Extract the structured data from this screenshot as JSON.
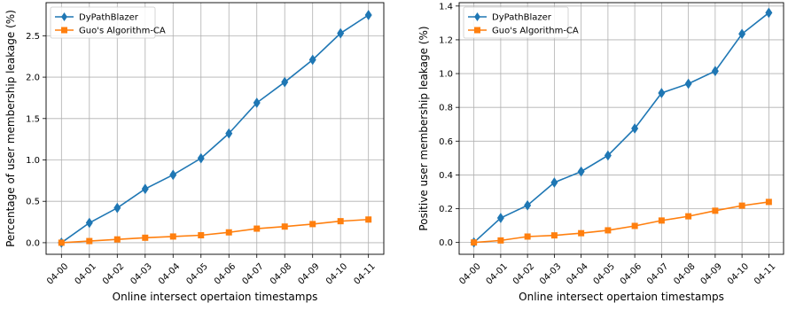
{
  "chart_data": [
    {
      "type": "line",
      "categories": [
        "04-00",
        "04-01",
        "04-02",
        "04-03",
        "04-04",
        "04-05",
        "04-06",
        "04-07",
        "04-08",
        "04-09",
        "04-10",
        "04-11"
      ],
      "xlabel": "Online intersect opertaion timestamps",
      "ylabel": "Percentage of user membership leakage (%)",
      "ylim": [
        -0.14,
        2.9
      ],
      "yticks": [
        0.0,
        0.5,
        1.0,
        1.5,
        2.0,
        2.5
      ],
      "ytick_labels": [
        "0.0",
        "0.5",
        "1.0",
        "1.5",
        "2.0",
        "2.5"
      ],
      "grid": true,
      "legend": "top-left",
      "series": [
        {
          "name": "DyPathBlazer",
          "color": "#1f77b4",
          "marker": "diamond",
          "values": [
            0.0,
            0.24,
            0.42,
            0.65,
            0.82,
            1.02,
            1.32,
            1.69,
            1.94,
            2.21,
            2.53,
            2.75
          ]
        },
        {
          "name": "Guo's Algorithm-CA",
          "color": "#ff7f0e",
          "marker": "square",
          "values": [
            0.0,
            0.02,
            0.04,
            0.06,
            0.075,
            0.09,
            0.125,
            0.17,
            0.195,
            0.225,
            0.26,
            0.28
          ]
        }
      ]
    },
    {
      "type": "line",
      "categories": [
        "04-00",
        "04-01",
        "04-02",
        "04-03",
        "04-04",
        "04-05",
        "04-06",
        "04-07",
        "04-08",
        "04-09",
        "04-10",
        "04-11"
      ],
      "xlabel": "Online intersect opertaion timestamps",
      "ylabel": "Positive user membership leakage (%)",
      "ylim": [
        -0.07,
        1.42
      ],
      "yticks": [
        0.0,
        0.2,
        0.4,
        0.6,
        0.8,
        1.0,
        1.2,
        1.4
      ],
      "ytick_labels": [
        "0.0",
        "0.2",
        "0.4",
        "0.6",
        "0.8",
        "1.0",
        "1.2",
        "1.4"
      ],
      "grid": true,
      "legend": "top-left",
      "series": [
        {
          "name": "DyPathBlazer",
          "color": "#1f77b4",
          "marker": "diamond",
          "values": [
            0.0,
            0.145,
            0.22,
            0.355,
            0.42,
            0.515,
            0.675,
            0.885,
            0.94,
            1.015,
            1.235,
            1.36
          ]
        },
        {
          "name": "Guo's Algorithm-CA",
          "color": "#ff7f0e",
          "marker": "square",
          "values": [
            0.0,
            0.012,
            0.035,
            0.042,
            0.055,
            0.072,
            0.098,
            0.13,
            0.155,
            0.188,
            0.218,
            0.24
          ]
        }
      ]
    }
  ]
}
